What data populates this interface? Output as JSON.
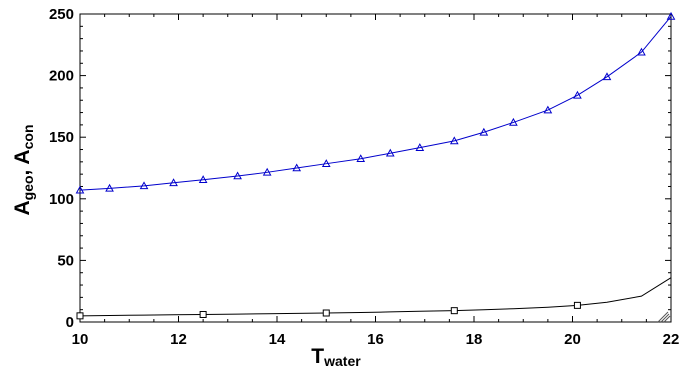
{
  "chart_data": {
    "type": "line",
    "title": "",
    "xlabel": {
      "main": "T",
      "sub": "water"
    },
    "ylabel": {
      "parts": [
        {
          "main": "A",
          "sub": "geo"
        },
        {
          "main": ",  ",
          "sub": ""
        },
        {
          "main": "A",
          "sub": "con"
        }
      ]
    },
    "xlim": [
      10,
      22
    ],
    "ylim": [
      0,
      250
    ],
    "xticks": [
      "10",
      "12",
      "14",
      "16",
      "18",
      "20",
      "22"
    ],
    "yticks": [
      "0",
      "50",
      "100",
      "150",
      "200",
      "250"
    ],
    "grid": false,
    "legend": "none",
    "series": [
      {
        "color": "#0000cc",
        "marker": "triangle",
        "x": [
          10,
          10.6,
          11.3,
          11.9,
          12.5,
          13.2,
          13.8,
          14.4,
          15.0,
          15.7,
          16.3,
          16.9,
          17.6,
          18.2,
          18.8,
          19.5,
          20.1,
          20.7,
          21.4,
          22.0
        ],
        "y": [
          107,
          108.5,
          110.5,
          113,
          115.5,
          118.5,
          121.5,
          125,
          128.5,
          132.5,
          137,
          141.5,
          147,
          154,
          162,
          172,
          184,
          199,
          219,
          248
        ]
      },
      {
        "color": "#000000",
        "marker": "square",
        "x": [
          10,
          10.6,
          11.3,
          11.9,
          12.5,
          13.2,
          13.8,
          14.4,
          15.0,
          15.7,
          16.3,
          16.9,
          17.6,
          18.2,
          18.8,
          19.5,
          20.1,
          20.7,
          21.4,
          22.0
        ],
        "y": [
          5,
          5.3,
          5.6,
          5.9,
          6.1,
          6.4,
          6.7,
          7.0,
          7.3,
          7.7,
          8.2,
          8.7,
          9.2,
          9.9,
          10.8,
          12.0,
          13.5,
          16.0,
          21.0,
          36.0
        ],
        "marker_indices": [
          0,
          4,
          8,
          12,
          16
        ]
      }
    ]
  }
}
